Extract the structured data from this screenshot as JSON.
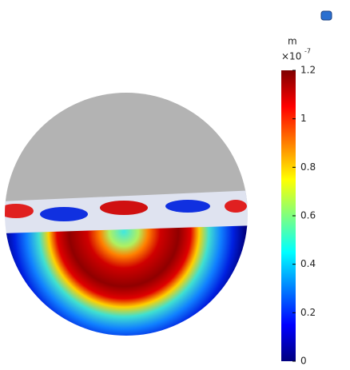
{
  "chart_data": {
    "type": "surface",
    "unit": "m",
    "scale_label": "×10",
    "scale_exponent": "-7",
    "ylim": [
      0,
      1.2
    ],
    "yticks": [
      0,
      0.2,
      0.4,
      0.6,
      0.8,
      1,
      1.2
    ],
    "colormap": [
      "#00007f",
      "#0000ff",
      "#007fff",
      "#00ffff",
      "#7fff7f",
      "#ffff00",
      "#ff7f00",
      "#ff0000",
      "#7f0000"
    ]
  }
}
